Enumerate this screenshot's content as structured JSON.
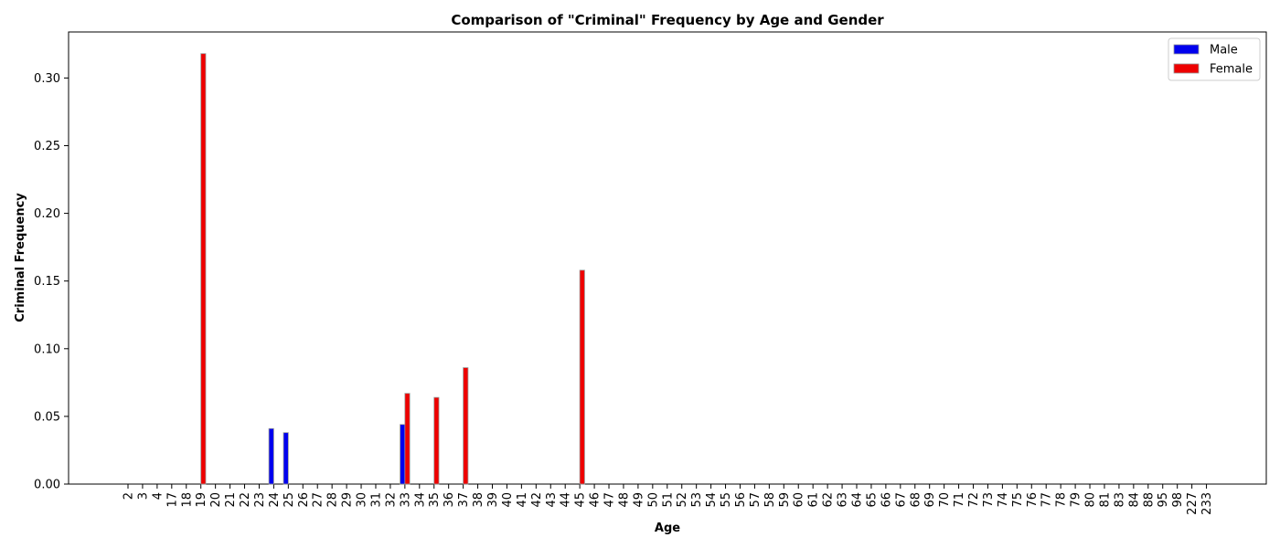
{
  "chart_data": {
    "type": "bar",
    "title": "Comparison of \"Criminal\" Frequency by Age and Gender",
    "xlabel": "Age",
    "ylabel": "Criminal Frequency",
    "ylim": [
      0,
      0.334
    ],
    "yticks": [
      0.0,
      0.05,
      0.1,
      0.15,
      0.2,
      0.25,
      0.3
    ],
    "categories": [
      "2",
      "3",
      "4",
      "17",
      "18",
      "19",
      "20",
      "21",
      "22",
      "23",
      "24",
      "25",
      "26",
      "27",
      "28",
      "29",
      "30",
      "31",
      "32",
      "33",
      "34",
      "35",
      "36",
      "37",
      "38",
      "39",
      "40",
      "41",
      "42",
      "43",
      "44",
      "45",
      "46",
      "47",
      "48",
      "49",
      "50",
      "51",
      "52",
      "53",
      "54",
      "55",
      "56",
      "57",
      "58",
      "59",
      "60",
      "61",
      "62",
      "63",
      "64",
      "65",
      "66",
      "67",
      "68",
      "69",
      "70",
      "71",
      "72",
      "73",
      "74",
      "75",
      "76",
      "77",
      "78",
      "79",
      "80",
      "81",
      "83",
      "84",
      "88",
      "95",
      "98",
      "227",
      "233"
    ],
    "series": [
      {
        "name": "Male",
        "color": "#0000ee",
        "values": [
          0,
          0,
          0,
          0,
          0,
          0,
          0,
          0,
          0,
          0,
          0.041,
          0.038,
          0,
          0,
          0,
          0,
          0,
          0,
          0,
          0.044,
          0,
          0,
          0,
          0,
          0,
          0,
          0,
          0,
          0,
          0,
          0,
          0,
          0,
          0,
          0,
          0,
          0,
          0,
          0,
          0,
          0,
          0,
          0,
          0,
          0,
          0,
          0,
          0,
          0,
          0,
          0,
          0,
          0,
          0,
          0,
          0,
          0,
          0,
          0,
          0,
          0,
          0,
          0,
          0,
          0,
          0,
          0,
          0,
          0,
          0,
          0,
          0,
          0,
          0,
          0
        ]
      },
      {
        "name": "Female",
        "color": "#ee0000",
        "values": [
          0,
          0,
          0,
          0,
          0,
          0.318,
          0,
          0,
          0,
          0,
          0,
          0,
          0,
          0,
          0,
          0,
          0,
          0,
          0,
          0.067,
          0,
          0.064,
          0,
          0.086,
          0,
          0,
          0,
          0,
          0,
          0,
          0,
          0.158,
          0,
          0,
          0,
          0,
          0,
          0,
          0,
          0,
          0,
          0,
          0,
          0,
          0,
          0,
          0,
          0,
          0,
          0,
          0,
          0,
          0,
          0,
          0,
          0,
          0,
          0,
          0,
          0,
          0,
          0,
          0,
          0,
          0,
          0,
          0,
          0,
          0,
          0,
          0,
          0,
          0,
          0,
          0
        ]
      }
    ],
    "legend": "top-right",
    "grid": false
  }
}
